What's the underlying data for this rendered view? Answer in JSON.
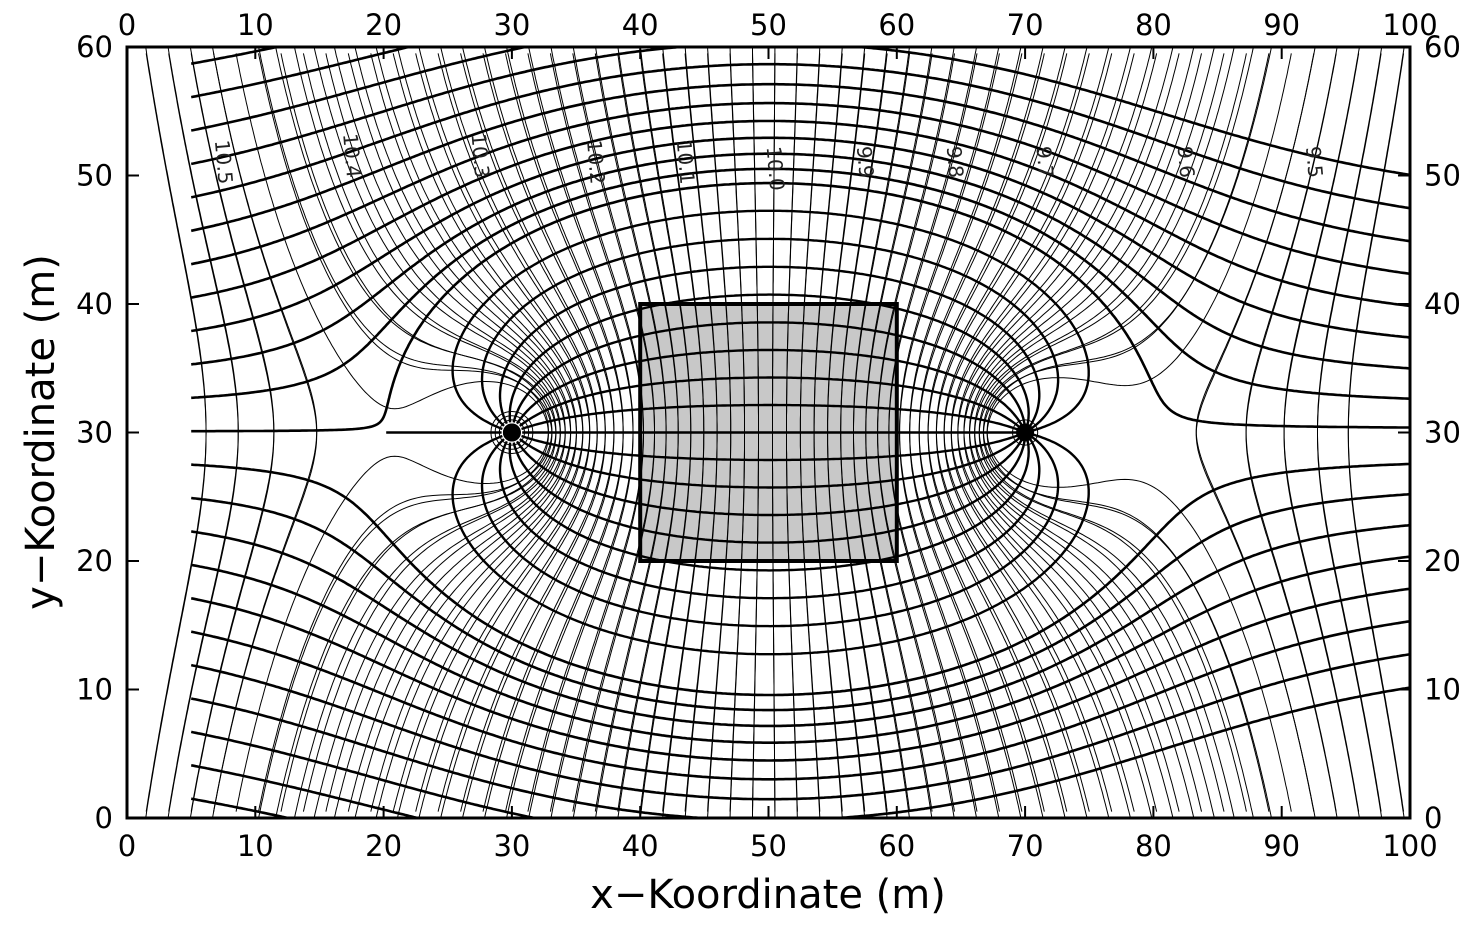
{
  "chart_data": {
    "type": "contour",
    "title": "",
    "xlabel": "x−Koordinate  (m)",
    "ylabel": "y−Koordinate  (m)",
    "xlim": [
      0,
      100
    ],
    "ylim": [
      0,
      60
    ],
    "xticks": [
      0,
      10,
      20,
      30,
      40,
      50,
      60,
      70,
      80,
      90,
      100
    ],
    "yticks": [
      0,
      10,
      20,
      30,
      40,
      50,
      60
    ],
    "xtick_labels": [
      "0",
      "10",
      "20",
      "30",
      "40",
      "50",
      "60",
      "70",
      "80",
      "90",
      "100"
    ],
    "ytick_labels": [
      "0",
      "10",
      "20",
      "30",
      "40",
      "50",
      "60"
    ],
    "grid": false,
    "mirror_axes": true,
    "wells": [
      {
        "x": 30,
        "y": 30,
        "role": "source"
      },
      {
        "x": 70,
        "y": 30,
        "role": "sink"
      }
    ],
    "shaded_region": {
      "x": [
        40,
        60
      ],
      "y": [
        20,
        40
      ],
      "color": "#c8c8c8"
    },
    "contour_labels": [
      {
        "text": "10.5",
        "x": 7,
        "y": 51
      },
      {
        "text": "10.4",
        "x": 17,
        "y": 51.5
      },
      {
        "text": "10.3",
        "x": 27,
        "y": 51.5
      },
      {
        "text": "10.2",
        "x": 36,
        "y": 51
      },
      {
        "text": "10.1",
        "x": 43,
        "y": 51
      },
      {
        "text": "10.0",
        "x": 50,
        "y": 50.5
      },
      {
        "text": "9.9",
        "x": 57,
        "y": 51
      },
      {
        "text": "9.8",
        "x": 64,
        "y": 51
      },
      {
        "text": "9.7",
        "x": 71,
        "y": 51
      },
      {
        "text": "9.6",
        "x": 82,
        "y": 51
      },
      {
        "text": "9.5",
        "x": 92,
        "y": 51
      }
    ],
    "colors": {
      "lines": "#000000",
      "shade": "#c8c8c8",
      "background": "#ffffff"
    }
  }
}
